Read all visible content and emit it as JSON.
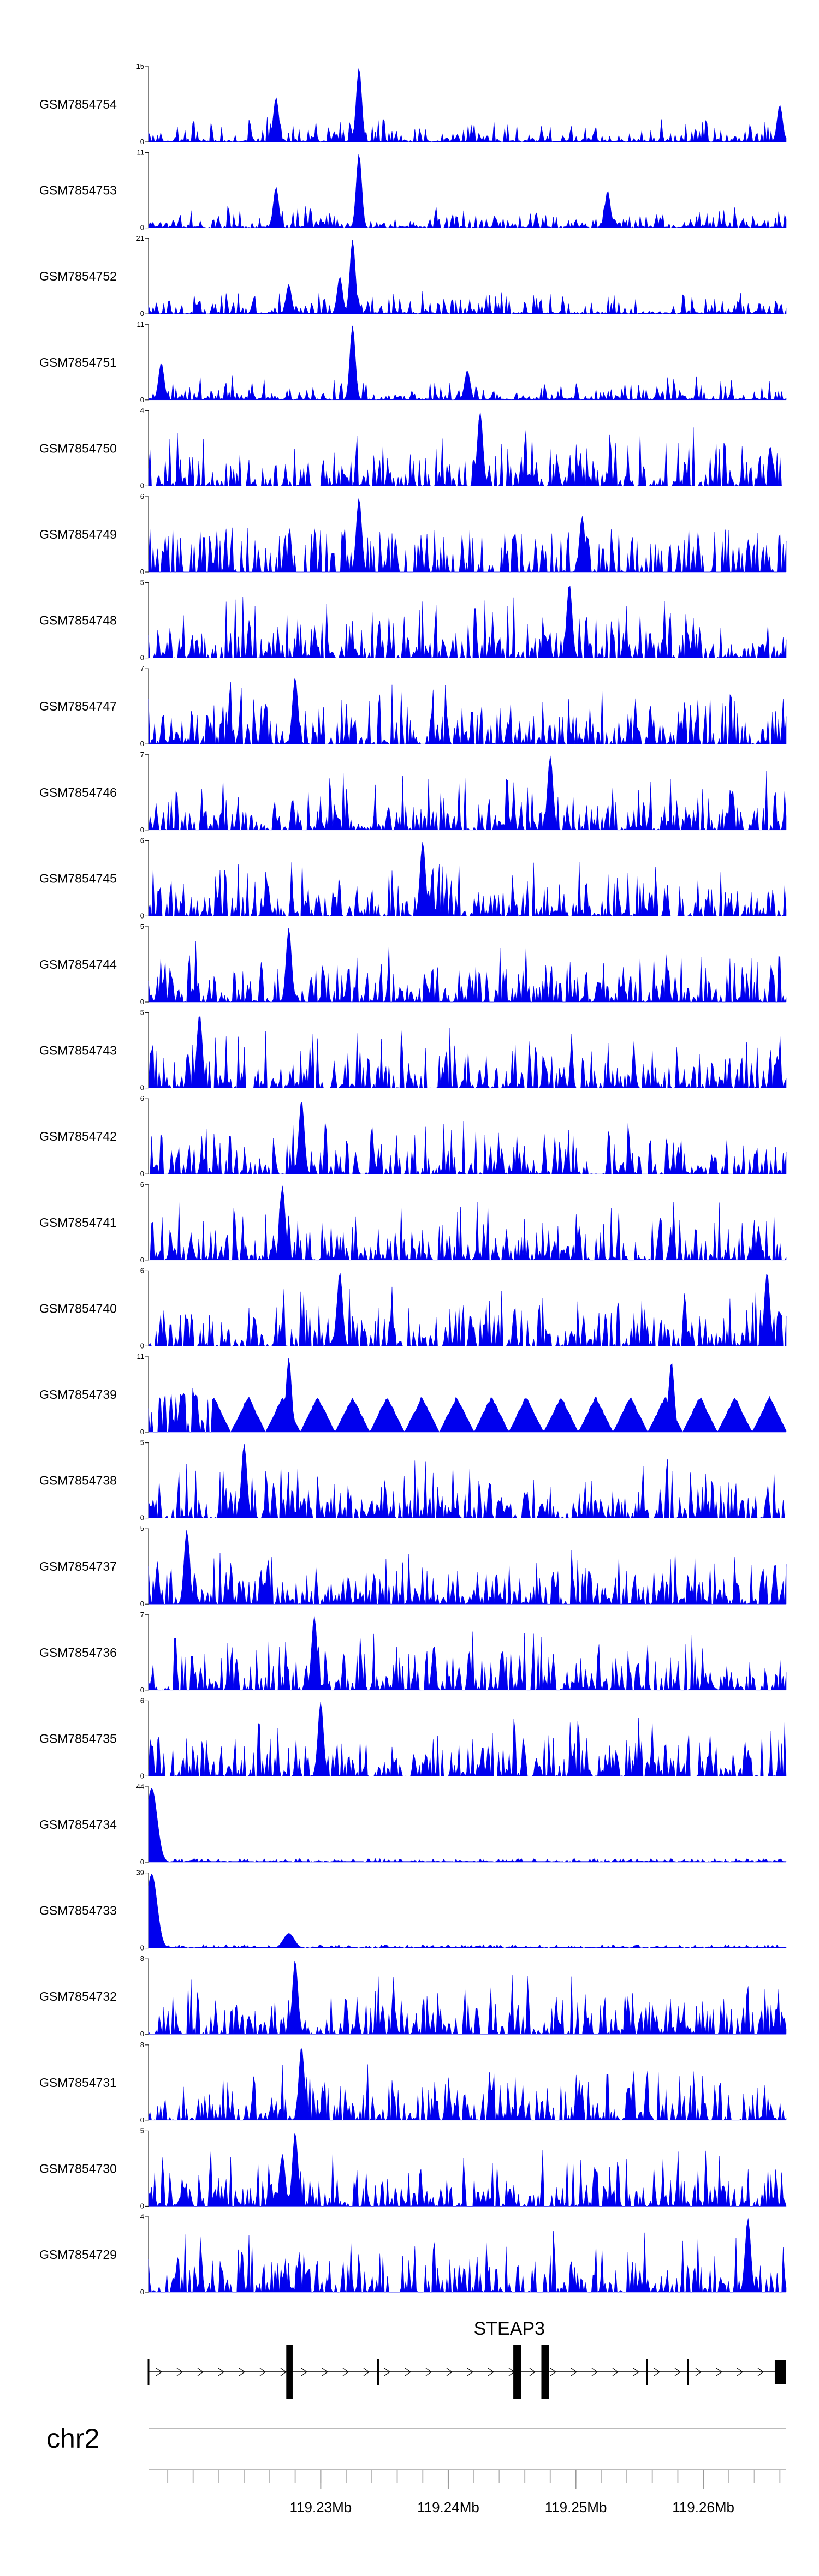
{
  "chart_data": {
    "type": "area",
    "chromosome": "chr2",
    "xlim_mb": [
      119.2165,
      119.2665
    ],
    "x_ticks": [
      119.23,
      119.24,
      119.25,
      119.26
    ],
    "x_tick_labels": [
      "119.23Mb",
      "119.24Mb",
      "119.25Mb",
      "119.26Mb"
    ],
    "color": "#0000ee",
    "gene": {
      "name": "STEAP3",
      "start_mb": 119.2165,
      "end_mb": 119.2665,
      "exons_mb": [
        [
          119.2273,
          119.2278
        ],
        [
          119.2451,
          119.2457
        ],
        [
          119.2473,
          119.2479
        ],
        [
          119.2656,
          119.2665
        ]
      ],
      "thin_marks_mb": [
        119.2165,
        119.2345,
        119.2556,
        119.2588
      ]
    },
    "tracks": [
      {
        "name": "GSM7854754",
        "ymax": 15,
        "tick_top": "15",
        "tick_bottom": "0",
        "profile": "peak",
        "peaks": [
          [
            0.2,
            0.6
          ],
          [
            0.33,
            1.0
          ],
          [
            0.99,
            0.5
          ]
        ]
      },
      {
        "name": "GSM7854753",
        "ymax": 11,
        "tick_top": "11",
        "tick_bottom": "0",
        "profile": "peak",
        "peaks": [
          [
            0.2,
            0.55
          ],
          [
            0.33,
            1.0
          ],
          [
            0.72,
            0.5
          ]
        ]
      },
      {
        "name": "GSM7854752",
        "ymax": 21,
        "tick_top": "21",
        "tick_bottom": "0",
        "profile": "peak",
        "peaks": [
          [
            0.22,
            0.4
          ],
          [
            0.32,
            1.0
          ],
          [
            0.3,
            0.5
          ]
        ]
      },
      {
        "name": "GSM7854751",
        "ymax": 11,
        "tick_top": "11",
        "tick_bottom": "0",
        "profile": "peak",
        "peaks": [
          [
            0.02,
            0.5
          ],
          [
            0.32,
            1.0
          ],
          [
            0.5,
            0.4
          ]
        ]
      },
      {
        "name": "GSM7854750",
        "ymax": 4,
        "tick_top": "4",
        "tick_bottom": "0",
        "profile": "noise",
        "peaks": [
          [
            0.52,
            1.0
          ]
        ]
      },
      {
        "name": "GSM7854749",
        "ymax": 6,
        "tick_top": "6",
        "tick_bottom": "0",
        "profile": "sparse",
        "peaks": [
          [
            0.33,
            1.0
          ],
          [
            0.68,
            0.75
          ]
        ]
      },
      {
        "name": "GSM7854748",
        "ymax": 5,
        "tick_top": "5",
        "tick_bottom": "0",
        "profile": "noise",
        "peaks": [
          [
            0.66,
            1.0
          ]
        ]
      },
      {
        "name": "GSM7854747",
        "ymax": 7,
        "tick_top": "7",
        "tick_bottom": "0",
        "profile": "noise",
        "peaks": [
          [
            0.23,
            0.9
          ]
        ]
      },
      {
        "name": "GSM7854746",
        "ymax": 7,
        "tick_top": "7",
        "tick_bottom": "0",
        "profile": "noise",
        "peaks": [
          [
            0.63,
            1.0
          ]
        ]
      },
      {
        "name": "GSM7854745",
        "ymax": 6,
        "tick_top": "6",
        "tick_bottom": "0",
        "profile": "noise",
        "peaks": [
          [
            0.43,
            1.0
          ]
        ]
      },
      {
        "name": "GSM7854744",
        "ymax": 5,
        "tick_top": "5",
        "tick_bottom": "0",
        "profile": "noise",
        "peaks": [
          [
            0.22,
            1.0
          ]
        ]
      },
      {
        "name": "GSM7854743",
        "ymax": 5,
        "tick_top": "5",
        "tick_bottom": "0",
        "profile": "noise",
        "peaks": [
          [
            0.08,
            1.0
          ]
        ]
      },
      {
        "name": "GSM7854742",
        "ymax": 6,
        "tick_top": "6",
        "tick_bottom": "0",
        "profile": "noise",
        "peaks": [
          [
            0.24,
            1.0
          ]
        ]
      },
      {
        "name": "GSM7854741",
        "ymax": 6,
        "tick_top": "6",
        "tick_bottom": "0",
        "profile": "noise",
        "peaks": [
          [
            0.21,
            1.0
          ]
        ]
      },
      {
        "name": "GSM7854740",
        "ymax": 6,
        "tick_top": "6",
        "tick_bottom": "0",
        "profile": "noise",
        "peaks": [
          [
            0.3,
            1.0
          ],
          [
            0.97,
            1.0
          ]
        ]
      },
      {
        "name": "GSM7854739",
        "ymax": 11,
        "tick_top": "11",
        "tick_bottom": "0",
        "profile": "triangles",
        "peaks": [
          [
            0.22,
            1.0
          ],
          [
            0.82,
            0.95
          ]
        ]
      },
      {
        "name": "GSM7854738",
        "ymax": 5,
        "tick_top": "5",
        "tick_bottom": "0",
        "profile": "noise",
        "peaks": [
          [
            0.15,
            1.0
          ]
        ]
      },
      {
        "name": "GSM7854737",
        "ymax": 5,
        "tick_top": "5",
        "tick_bottom": "0",
        "profile": "noise",
        "peaks": [
          [
            0.06,
            1.0
          ]
        ]
      },
      {
        "name": "GSM7854736",
        "ymax": 7,
        "tick_top": "7",
        "tick_bottom": "0",
        "profile": "noise",
        "peaks": [
          [
            0.26,
            1.0
          ]
        ]
      },
      {
        "name": "GSM7854735",
        "ymax": 6,
        "tick_top": "6",
        "tick_bottom": "0",
        "profile": "noise",
        "peaks": [
          [
            0.27,
            1.0
          ]
        ]
      },
      {
        "name": "GSM7854734",
        "ymax": 44,
        "tick_top": "44",
        "tick_bottom": "0",
        "profile": "edge",
        "peaks": [
          [
            0.005,
            1.0
          ]
        ]
      },
      {
        "name": "GSM7854733",
        "ymax": 39,
        "tick_top": "39",
        "tick_bottom": "0",
        "profile": "edge",
        "peaks": [
          [
            0.005,
            1.0
          ],
          [
            0.22,
            0.2
          ]
        ]
      },
      {
        "name": "GSM7854732",
        "ymax": 8,
        "tick_top": "8",
        "tick_bottom": "0",
        "profile": "noise",
        "peaks": [
          [
            0.23,
            1.0
          ]
        ]
      },
      {
        "name": "GSM7854731",
        "ymax": 8,
        "tick_top": "8",
        "tick_bottom": "0",
        "profile": "noise",
        "peaks": [
          [
            0.24,
            1.0
          ]
        ]
      },
      {
        "name": "GSM7854730",
        "ymax": 5,
        "tick_top": "5",
        "tick_bottom": "0",
        "profile": "noise",
        "peaks": [
          [
            0.23,
            1.0
          ],
          [
            0.21,
            0.7
          ]
        ]
      },
      {
        "name": "GSM7854729",
        "ymax": 4,
        "tick_top": "4",
        "tick_bottom": "0",
        "profile": "noise",
        "peaks": [
          [
            0.94,
            1.0
          ]
        ]
      }
    ]
  }
}
